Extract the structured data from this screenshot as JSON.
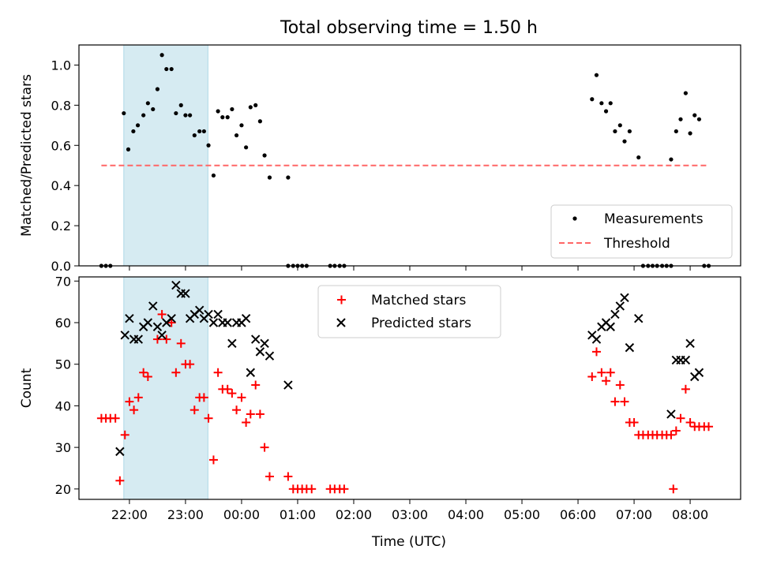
{
  "chart_data": {
    "title": "Total observing time = 1.50 h",
    "xlabel": "Time (UTC)",
    "x_tick_labels": [
      "22:00",
      "23:00",
      "00:00",
      "01:00",
      "02:00",
      "03:00",
      "04:00",
      "05:00",
      "06:00",
      "07:00",
      "08:00"
    ],
    "x_ticks_hours": [
      22,
      23,
      24,
      25,
      26,
      27,
      28,
      29,
      30,
      31,
      32
    ],
    "xlim_hours": [
      21.1,
      32.9
    ],
    "highlight_span_hours": [
      21.9,
      23.4
    ],
    "colors": {
      "highlight": "#add8e6",
      "threshold": "#ff6666",
      "matched": "#ff0000",
      "predicted": "#000000",
      "measurement": "#000000"
    },
    "panels": [
      {
        "type": "scatter",
        "ylabel": "Matched/Predicted stars",
        "ylim": [
          0,
          1.1
        ],
        "y_ticks": [
          0.0,
          0.2,
          0.4,
          0.6,
          0.8,
          1.0
        ],
        "y_tick_labels": [
          "0.0",
          "0.2",
          "0.4",
          "0.6",
          "0.8",
          "1.0"
        ],
        "legend_position": "lower-right",
        "threshold": {
          "name": "Threshold",
          "value": 0.5,
          "x_range_hours": [
            21.5,
            32.3
          ]
        },
        "series": [
          {
            "name": "Measurements",
            "marker": "dot",
            "points": [
              [
                21.5,
                0
              ],
              [
                21.58,
                0
              ],
              [
                21.66,
                0
              ],
              [
                21.9,
                0.76
              ],
              [
                21.98,
                0.58
              ],
              [
                22.07,
                0.67
              ],
              [
                22.15,
                0.7
              ],
              [
                22.25,
                0.75
              ],
              [
                22.33,
                0.81
              ],
              [
                22.42,
                0.78
              ],
              [
                22.5,
                0.88
              ],
              [
                22.58,
                1.05
              ],
              [
                22.66,
                0.98
              ],
              [
                22.75,
                0.98
              ],
              [
                22.83,
                0.76
              ],
              [
                22.92,
                0.8
              ],
              [
                23.0,
                0.75
              ],
              [
                23.08,
                0.75
              ],
              [
                23.16,
                0.65
              ],
              [
                23.25,
                0.67
              ],
              [
                23.33,
                0.67
              ],
              [
                23.41,
                0.6
              ],
              [
                23.5,
                0.45
              ],
              [
                23.58,
                0.77
              ],
              [
                23.66,
                0.74
              ],
              [
                23.75,
                0.74
              ],
              [
                23.83,
                0.78
              ],
              [
                23.91,
                0.65
              ],
              [
                24.0,
                0.7
              ],
              [
                24.08,
                0.59
              ],
              [
                24.16,
                0.79
              ],
              [
                24.25,
                0.8
              ],
              [
                24.33,
                0.72
              ],
              [
                24.41,
                0.55
              ],
              [
                24.5,
                0.44
              ],
              [
                24.83,
                0.44
              ],
              [
                24.83,
                0
              ],
              [
                24.92,
                0
              ],
              [
                25.0,
                0
              ],
              [
                25.08,
                0
              ],
              [
                25.16,
                0
              ],
              [
                25.58,
                0
              ],
              [
                25.66,
                0
              ],
              [
                25.75,
                0
              ],
              [
                25.83,
                0
              ],
              [
                30.25,
                0.83
              ],
              [
                30.33,
                0.95
              ],
              [
                30.42,
                0.81
              ],
              [
                30.5,
                0.77
              ],
              [
                30.58,
                0.81
              ],
              [
                30.66,
                0.67
              ],
              [
                30.75,
                0.7
              ],
              [
                30.83,
                0.62
              ],
              [
                30.92,
                0.67
              ],
              [
                31.08,
                0.54
              ],
              [
                31.66,
                0.53
              ],
              [
                31.75,
                0.67
              ],
              [
                31.83,
                0.73
              ],
              [
                31.92,
                0.86
              ],
              [
                32.0,
                0.66
              ],
              [
                32.08,
                0.75
              ],
              [
                32.16,
                0.73
              ],
              [
                31.16,
                0
              ],
              [
                31.25,
                0
              ],
              [
                31.33,
                0
              ],
              [
                31.41,
                0
              ],
              [
                31.5,
                0
              ],
              [
                31.58,
                0
              ],
              [
                31.66,
                0
              ],
              [
                32.25,
                0
              ],
              [
                32.33,
                0
              ]
            ]
          }
        ]
      },
      {
        "type": "scatter",
        "ylabel": "Count",
        "ylim": [
          17.5,
          71
        ],
        "y_ticks": [
          20,
          30,
          40,
          50,
          60,
          70
        ],
        "y_tick_labels": [
          "20",
          "30",
          "40",
          "50",
          "60",
          "70"
        ],
        "legend_position": "upper-center",
        "series": [
          {
            "name": "Matched stars",
            "marker": "plus",
            "points": [
              [
                21.5,
                37
              ],
              [
                21.58,
                37
              ],
              [
                21.66,
                37
              ],
              [
                21.75,
                37
              ],
              [
                21.83,
                22
              ],
              [
                21.92,
                33
              ],
              [
                22.0,
                41
              ],
              [
                22.08,
                39
              ],
              [
                22.16,
                42
              ],
              [
                22.25,
                48
              ],
              [
                22.33,
                47
              ],
              [
                22.5,
                56
              ],
              [
                22.58,
                62
              ],
              [
                22.66,
                56
              ],
              [
                22.75,
                60
              ],
              [
                22.83,
                48
              ],
              [
                22.92,
                55
              ],
              [
                23.0,
                50
              ],
              [
                23.08,
                50
              ],
              [
                23.16,
                39
              ],
              [
                23.25,
                42
              ],
              [
                23.33,
                42
              ],
              [
                23.41,
                37
              ],
              [
                23.5,
                27
              ],
              [
                23.58,
                48
              ],
              [
                23.66,
                44
              ],
              [
                23.75,
                44
              ],
              [
                23.83,
                43
              ],
              [
                23.91,
                39
              ],
              [
                24.0,
                42
              ],
              [
                24.08,
                36
              ],
              [
                24.16,
                38
              ],
              [
                24.25,
                45
              ],
              [
                24.33,
                38
              ],
              [
                24.41,
                30
              ],
              [
                24.5,
                23
              ],
              [
                24.83,
                23
              ],
              [
                24.92,
                20
              ],
              [
                25.0,
                20
              ],
              [
                25.08,
                20
              ],
              [
                25.16,
                20
              ],
              [
                25.25,
                20
              ],
              [
                25.58,
                20
              ],
              [
                25.66,
                20
              ],
              [
                25.75,
                20
              ],
              [
                25.83,
                20
              ],
              [
                30.25,
                47
              ],
              [
                30.33,
                53
              ],
              [
                30.42,
                48
              ],
              [
                30.5,
                46
              ],
              [
                30.58,
                48
              ],
              [
                30.66,
                41
              ],
              [
                30.75,
                45
              ],
              [
                30.83,
                41
              ],
              [
                30.92,
                36
              ],
              [
                31.0,
                36
              ],
              [
                31.08,
                33
              ],
              [
                31.16,
                33
              ],
              [
                31.25,
                33
              ],
              [
                31.33,
                33
              ],
              [
                31.41,
                33
              ],
              [
                31.5,
                33
              ],
              [
                31.58,
                33
              ],
              [
                31.66,
                33
              ],
              [
                31.7,
                20
              ],
              [
                31.75,
                34
              ],
              [
                31.83,
                37
              ],
              [
                31.92,
                44
              ],
              [
                32.0,
                36
              ],
              [
                32.08,
                35
              ],
              [
                32.16,
                35
              ],
              [
                32.25,
                35
              ],
              [
                32.33,
                35
              ]
            ]
          },
          {
            "name": "Predicted stars",
            "marker": "x",
            "points": [
              [
                21.83,
                29
              ],
              [
                21.92,
                57
              ],
              [
                22.0,
                61
              ],
              [
                22.08,
                56
              ],
              [
                22.16,
                56
              ],
              [
                22.25,
                59
              ],
              [
                22.33,
                60
              ],
              [
                22.42,
                64
              ],
              [
                22.5,
                59
              ],
              [
                22.58,
                57
              ],
              [
                22.66,
                60
              ],
              [
                22.75,
                61
              ],
              [
                22.83,
                69
              ],
              [
                22.92,
                67
              ],
              [
                23.0,
                67
              ],
              [
                23.08,
                61
              ],
              [
                23.16,
                62
              ],
              [
                23.25,
                63
              ],
              [
                23.33,
                61
              ],
              [
                23.41,
                62
              ],
              [
                23.5,
                60
              ],
              [
                23.58,
                62
              ],
              [
                23.66,
                60
              ],
              [
                23.75,
                60
              ],
              [
                23.83,
                55
              ],
              [
                23.91,
                60
              ],
              [
                24.0,
                60
              ],
              [
                24.08,
                61
              ],
              [
                24.16,
                48
              ],
              [
                24.25,
                56
              ],
              [
                24.33,
                53
              ],
              [
                24.41,
                55
              ],
              [
                24.5,
                52
              ],
              [
                24.83,
                45
              ],
              [
                30.25,
                57
              ],
              [
                30.33,
                56
              ],
              [
                30.42,
                59
              ],
              [
                30.5,
                60
              ],
              [
                30.58,
                59
              ],
              [
                30.66,
                62
              ],
              [
                30.75,
                64
              ],
              [
                30.83,
                66
              ],
              [
                30.92,
                54
              ],
              [
                31.08,
                61
              ],
              [
                31.66,
                38
              ],
              [
                31.75,
                51
              ],
              [
                31.83,
                51
              ],
              [
                31.92,
                51
              ],
              [
                32.0,
                55
              ],
              [
                32.08,
                47
              ],
              [
                32.16,
                48
              ]
            ]
          }
        ]
      }
    ]
  }
}
